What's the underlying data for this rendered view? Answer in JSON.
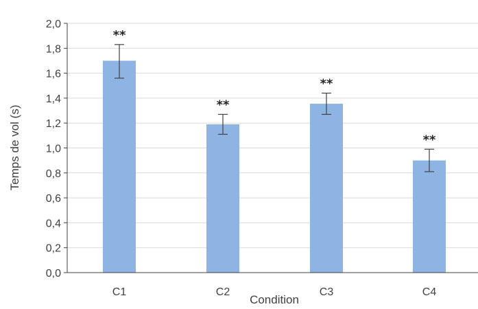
{
  "chart_data": {
    "type": "bar",
    "categories": [
      "C1",
      "C2",
      "C3",
      "C4"
    ],
    "values": [
      1.7,
      1.19,
      1.355,
      0.9
    ],
    "error_upper": [
      1.83,
      1.27,
      1.44,
      0.99
    ],
    "error_lower": [
      1.56,
      1.11,
      1.27,
      0.81
    ],
    "annotations": [
      "**",
      "**",
      "**",
      "**"
    ],
    "xlabel": "Condition",
    "ylabel": "Temps de vol (s)",
    "ylim": [
      0,
      2.0
    ],
    "yticks": [
      "0,0",
      "0,2",
      "0,4",
      "0,6",
      "0,8",
      "1,0",
      "1,2",
      "1,4",
      "1,6",
      "1,8",
      "2,0"
    ],
    "grid": true,
    "legend": "none",
    "colors": {
      "bar": "#8eb4e3",
      "grid": "#d9d9d9",
      "axis": "#404040",
      "error_bar": "#404040"
    }
  }
}
